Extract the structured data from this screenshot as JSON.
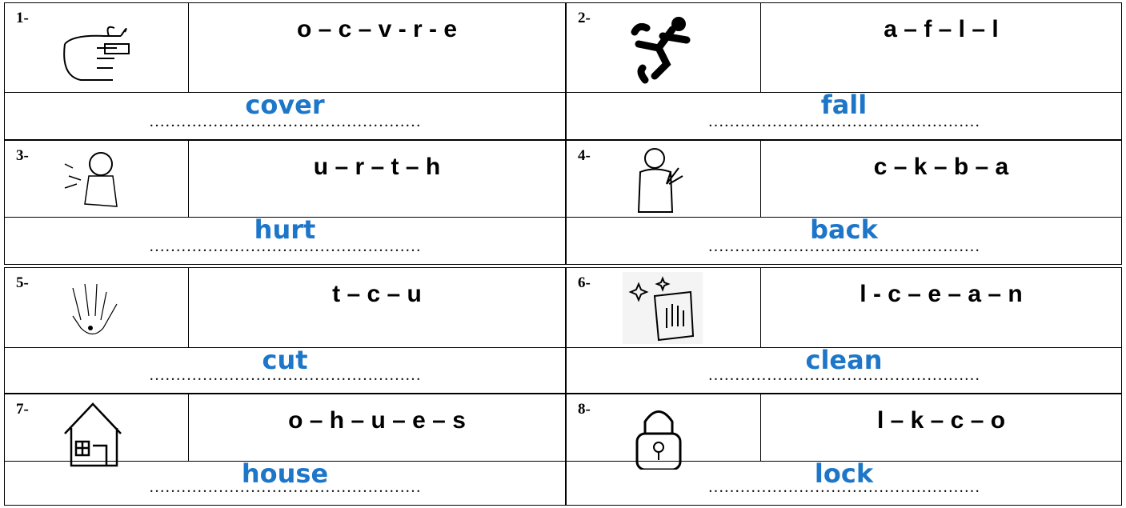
{
  "items": [
    {
      "number": "1-",
      "scrambled": "o – c – v - r - e",
      "dots": "……………………………………………",
      "answer": "cover"
    },
    {
      "number": "2-",
      "scrambled": "a – f – l – l",
      "dots": "……………………………………………",
      "answer": "fall"
    },
    {
      "number": "3-",
      "scrambled": "u – r – t – h",
      "dots": "……………………………………………",
      "answer": "hurt"
    },
    {
      "number": "4-",
      "scrambled": "c – k – b – a",
      "dots": "……………………………………………",
      "answer": "back"
    },
    {
      "number": "5-",
      "scrambled": "t – c – u",
      "dots": "……………………………………………",
      "answer": "cut"
    },
    {
      "number": "6-",
      "scrambled": "l - c – e – a – n",
      "dots": "……………………………………………",
      "answer": "clean"
    },
    {
      "number": "7-",
      "scrambled": "o – h – u – e – s",
      "dots": "……………………………………………",
      "answer": "house"
    },
    {
      "number": "8-",
      "scrambled": "l – k – c – o",
      "dots": "……………………………………………",
      "answer": "lock"
    }
  ]
}
